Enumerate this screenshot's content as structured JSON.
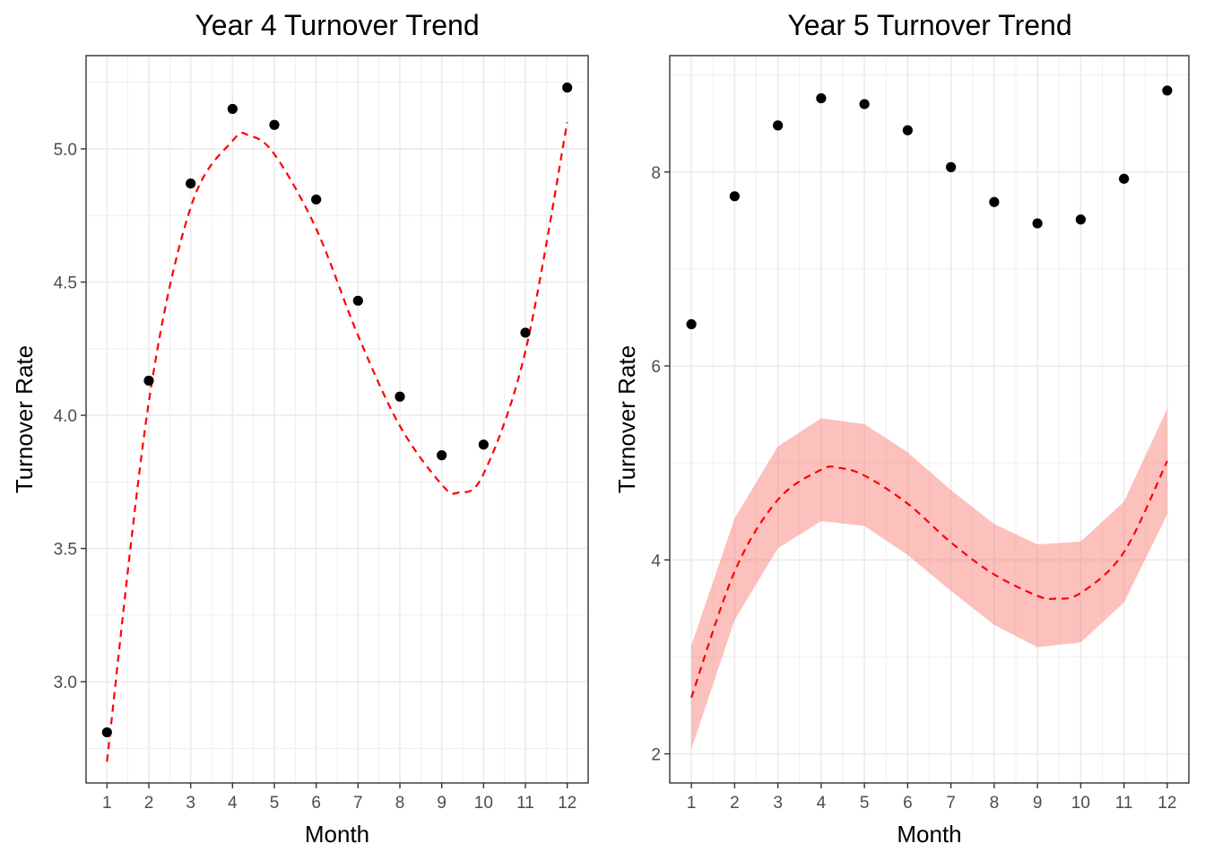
{
  "chart_data": [
    {
      "type": "scatter",
      "title": "Year 4 Turnover Trend",
      "xlabel": "Month",
      "ylabel": "Turnover Rate",
      "x": [
        1,
        2,
        3,
        4,
        5,
        6,
        7,
        8,
        9,
        10,
        11,
        12
      ],
      "xlim": [
        0.5,
        12.5
      ],
      "ylim": [
        2.62,
        5.35
      ],
      "y_ticks": [
        3.0,
        3.5,
        4.0,
        4.5,
        5.0
      ],
      "y_tick_labels": [
        "3.0",
        "3.5",
        "4.0",
        "4.5",
        "5.0"
      ],
      "x_tick_labels": [
        "1",
        "2",
        "3",
        "4",
        "5",
        "6",
        "7",
        "8",
        "9",
        "10",
        "11",
        "12"
      ],
      "series": [
        {
          "kind": "points",
          "values": [
            2.81,
            4.13,
            4.87,
            5.15,
            5.09,
            4.81,
            4.43,
            4.07,
            3.85,
            3.89,
            4.31,
            5.23
          ],
          "color": "#000000"
        },
        {
          "kind": "fit",
          "style": "dashed",
          "color": "#ff0000",
          "degree": 4,
          "curve_x": [
            1,
            2,
            3,
            4,
            4.4,
            5,
            6,
            7,
            8,
            9,
            9.4,
            10,
            11,
            12
          ],
          "curve_y": [
            2.7,
            4.05,
            4.78,
            5.03,
            5.05,
            4.98,
            4.7,
            4.3,
            3.96,
            3.74,
            3.71,
            3.78,
            4.24,
            5.1
          ]
        }
      ],
      "grid": true,
      "legend": "none"
    },
    {
      "type": "scatter",
      "title": "Year 5 Turnover Trend",
      "xlabel": "Month",
      "ylabel": "Turnover Rate",
      "x": [
        1,
        2,
        3,
        4,
        5,
        6,
        7,
        8,
        9,
        10,
        11,
        12
      ],
      "xlim": [
        0.5,
        12.5
      ],
      "ylim": [
        1.7,
        9.2
      ],
      "y_ticks": [
        2,
        4,
        6,
        8
      ],
      "y_tick_labels": [
        "2",
        "4",
        "6",
        "8"
      ],
      "x_tick_labels": [
        "1",
        "2",
        "3",
        "4",
        "5",
        "6",
        "7",
        "8",
        "9",
        "10",
        "11",
        "12"
      ],
      "series": [
        {
          "kind": "points",
          "values": [
            6.43,
            7.75,
            8.48,
            8.76,
            8.7,
            8.43,
            8.05,
            7.69,
            7.47,
            7.51,
            7.93,
            8.84
          ],
          "color": "#000000"
        },
        {
          "kind": "fit",
          "style": "dashed",
          "color": "#ff0000",
          "curve_x": [
            1,
            2,
            3,
            4,
            4.4,
            5,
            6,
            7,
            8,
            9,
            9.4,
            10,
            11,
            12
          ],
          "curve_y": [
            2.58,
            3.88,
            4.62,
            4.93,
            4.95,
            4.87,
            4.58,
            4.18,
            3.85,
            3.63,
            3.6,
            3.66,
            4.08,
            5.02
          ]
        },
        {
          "kind": "band",
          "color": "#f8766d",
          "opacity": 0.45,
          "band_x": [
            1,
            2,
            3,
            4,
            5,
            6,
            7,
            8,
            9,
            10,
            11,
            12
          ],
          "lower": [
            2.05,
            3.38,
            4.12,
            4.4,
            4.35,
            4.05,
            3.68,
            3.33,
            3.1,
            3.15,
            3.56,
            4.47
          ],
          "upper": [
            3.12,
            4.43,
            5.17,
            5.46,
            5.4,
            5.11,
            4.72,
            4.37,
            4.16,
            4.19,
            4.6,
            5.56
          ]
        }
      ],
      "grid": true,
      "legend": "none"
    }
  ]
}
